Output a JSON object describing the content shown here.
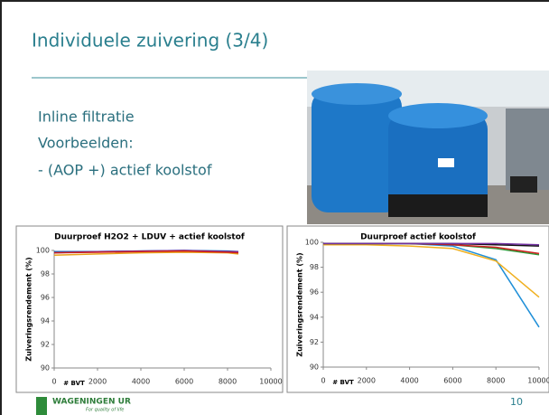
{
  "slide": {
    "title": "Individuele zuivering (3/4)",
    "bullets": [
      "Inline filtratie",
      "Voorbeelden:",
      "- (AOP +) actief koolstof"
    ],
    "logo_text": "WAGENINGEN UR",
    "logo_tagline": "For quality of life",
    "page_number": "10"
  },
  "chart_data": [
    {
      "type": "line",
      "title": "Duurproef H2O2 + LDUV + actief koolstof",
      "x_label": "# BVT",
      "y_label": "Zuiveringsrendement (%)",
      "x": [
        0,
        2000,
        4000,
        6000,
        8000,
        8500
      ],
      "xlim": [
        0,
        10000
      ],
      "xticks": [
        0,
        2000,
        4000,
        6000,
        8000,
        10000
      ],
      "ylim": [
        90,
        100
      ],
      "yticks": [
        90,
        92,
        94,
        96,
        98,
        100
      ],
      "grid": false,
      "series": [
        {
          "color": "#e8a21a",
          "values": [
            99.6,
            99.7,
            99.8,
            99.85,
            99.8,
            99.7
          ]
        },
        {
          "color": "#1f6fbf",
          "values": [
            99.9,
            99.9,
            99.95,
            100,
            99.95,
            99.9
          ]
        },
        {
          "color": "#7030a0",
          "values": [
            99.8,
            99.9,
            99.95,
            100,
            99.9,
            99.9
          ]
        },
        {
          "color": "#d02020",
          "values": [
            99.8,
            99.85,
            99.9,
            99.95,
            99.85,
            99.8
          ]
        }
      ]
    },
    {
      "type": "line",
      "title": "Duurproef actief koolstof",
      "x_label": "# BVT",
      "y_label": "Zuiveringsrendement (%)",
      "x": [
        0,
        2000,
        4000,
        6000,
        8000,
        10000
      ],
      "xlim": [
        0,
        10000
      ],
      "xticks": [
        0,
        2000,
        4000,
        6000,
        8000,
        10000
      ],
      "ylim": [
        90,
        100
      ],
      "yticks": [
        90,
        92,
        94,
        96,
        98,
        100
      ],
      "grid": false,
      "series": [
        {
          "color": "#1f8fd8",
          "values": [
            99.9,
            99.9,
            99.9,
            99.7,
            98.6,
            93.2
          ]
        },
        {
          "color": "#f0b020",
          "values": [
            99.8,
            99.8,
            99.7,
            99.5,
            98.5,
            95.6
          ]
        },
        {
          "color": "#2e9a3a",
          "values": [
            99.9,
            99.9,
            99.9,
            99.8,
            99.5,
            99.0
          ]
        },
        {
          "color": "#d02020",
          "values": [
            99.9,
            99.9,
            99.9,
            99.8,
            99.6,
            99.1
          ]
        },
        {
          "color": "#111111",
          "values": [
            99.9,
            99.9,
            99.9,
            99.9,
            99.8,
            99.7
          ]
        },
        {
          "color": "#7030a0",
          "values": [
            99.9,
            99.9,
            99.9,
            99.9,
            99.9,
            99.8
          ]
        }
      ]
    }
  ]
}
